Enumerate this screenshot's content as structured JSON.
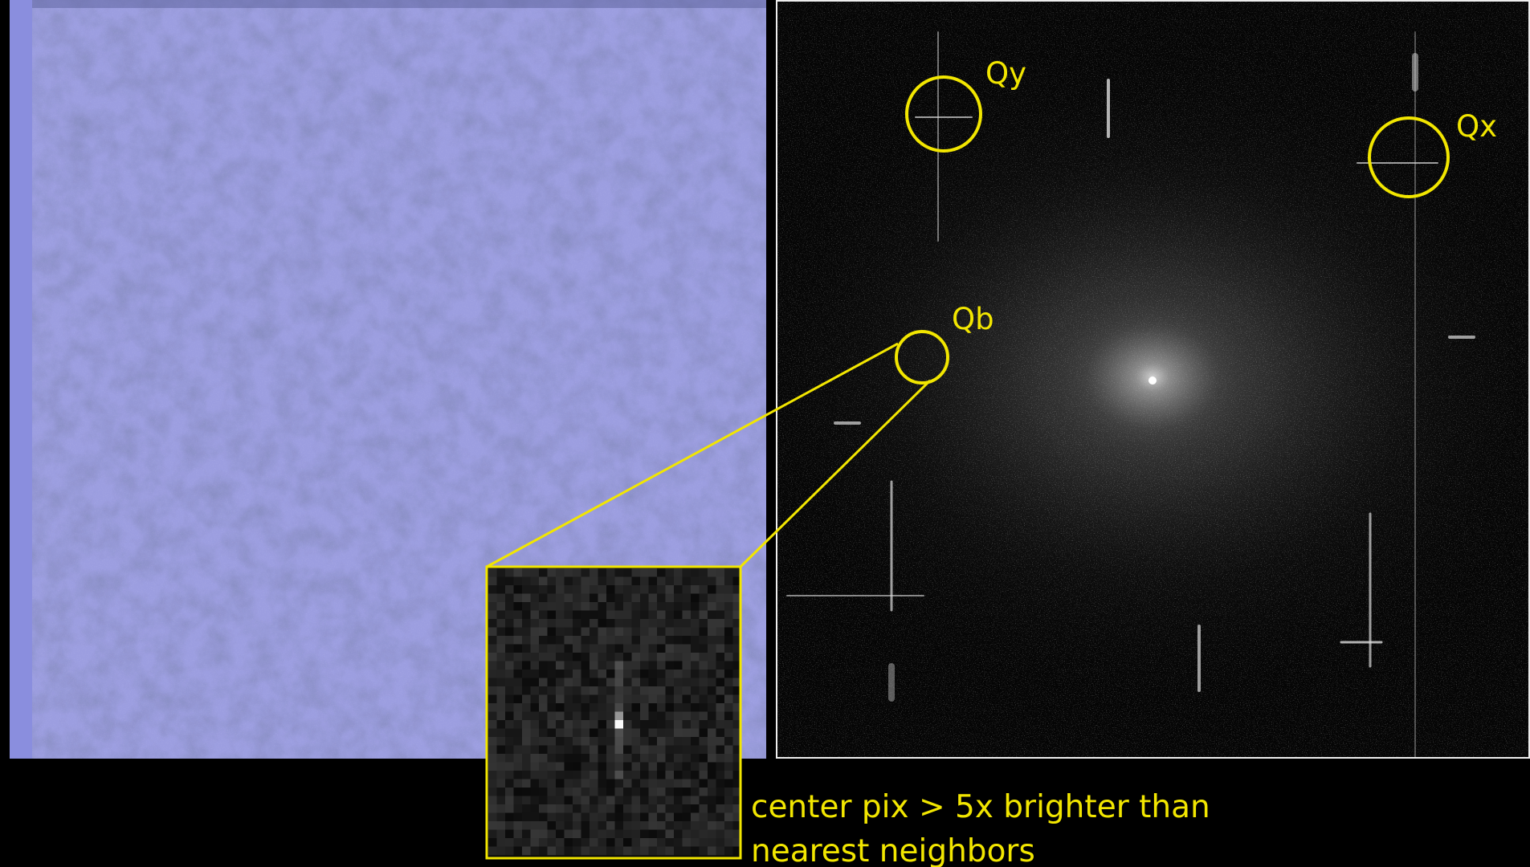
{
  "labels": {
    "qy": "Qy",
    "qx": "Qx",
    "qb": "Qb"
  },
  "caption": {
    "lines": [
      "center pix > 5x brighter than",
      "nearest neighbors"
    ]
  }
}
